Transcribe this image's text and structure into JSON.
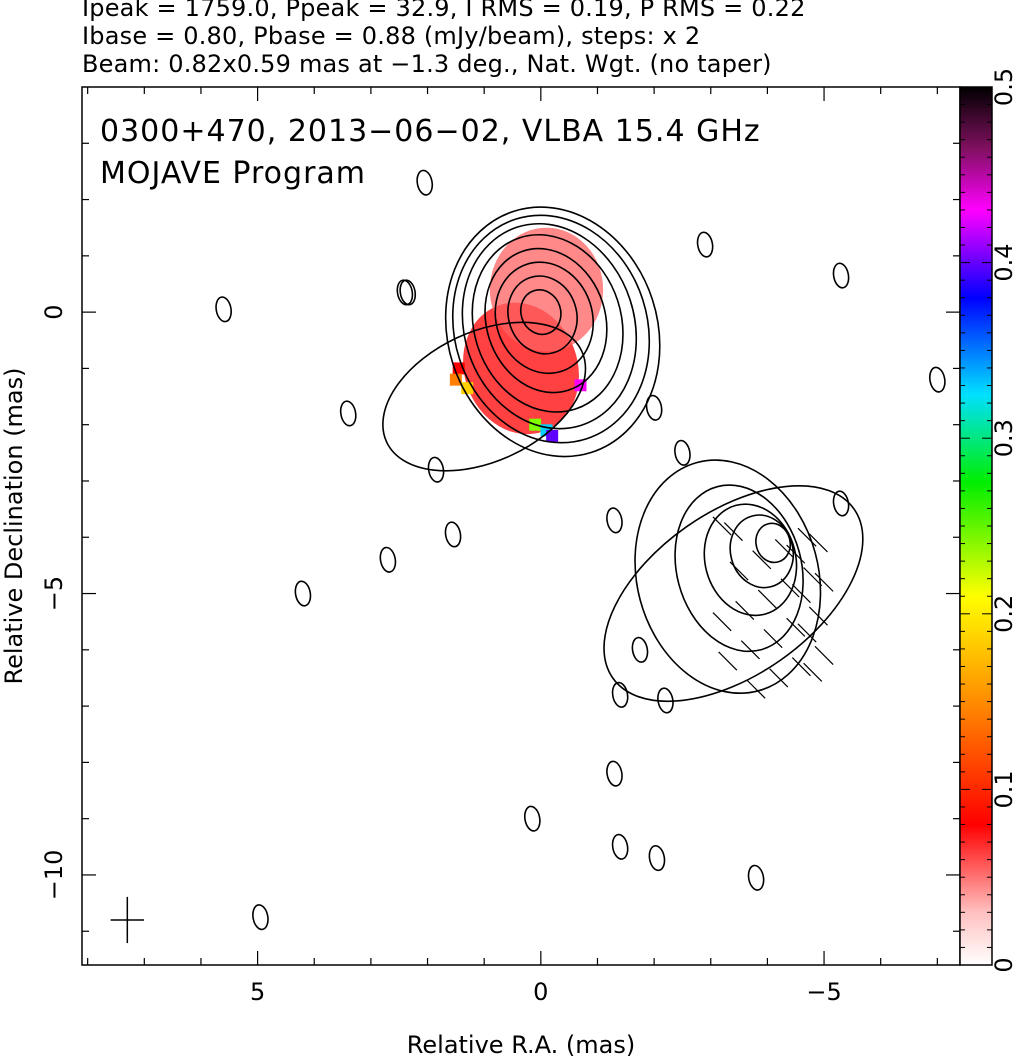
{
  "header": {
    "line1": "Ipeak = 1759.0, Ppeak = 32.9, I RMS = 0.19, P RMS = 0.22",
    "line2": "Ibase = 0.80, Pbase = 0.88 (mJy/beam), steps: x 2",
    "line3": "Beam: 0.82x0.59 mas at −1.3 deg., Nat. Wgt. (no taper)"
  },
  "chart_data": {
    "type": "heatmap",
    "title": "0300+470, 2013−06−02, VLBA 15.4 GHz",
    "subtitle": "MOJAVE Program",
    "xlabel": "Relative R.A. (mas)",
    "ylabel": "Relative Declination (mas)",
    "xlim": [
      8.1,
      -7.4
    ],
    "ylim": [
      -11.6,
      4.0
    ],
    "x_axis_reversed": true,
    "x_ticks": [
      5,
      0,
      -5
    ],
    "x_tick_labels": [
      "5",
      "0",
      "−5"
    ],
    "y_ticks": [
      0,
      -5,
      -10
    ],
    "y_tick_labels": [
      "0",
      "−5",
      "−10"
    ],
    "colorbar": {
      "range": [
        0,
        0.5
      ],
      "ticks": [
        0,
        0.1,
        0.2,
        0.3,
        0.4,
        0.5
      ],
      "tick_labels": [
        "0",
        "0.1",
        "0.2",
        "0.3",
        "0.4",
        "0.5"
      ],
      "colors": [
        "#ffffff",
        "#ff0000",
        "#ff8000",
        "#ffff00",
        "#00ff00",
        "#00ffff",
        "#0000ff",
        "#ff00ff",
        "#000000"
      ]
    },
    "core": {
      "center": [
        0,
        0
      ],
      "contour_radii": [
        [
          0.35,
          0.4
        ],
        [
          0.6,
          0.7
        ],
        [
          0.85,
          1.0
        ],
        [
          1.05,
          1.3
        ],
        [
          1.3,
          1.6
        ],
        [
          1.5,
          1.85
        ],
        [
          1.7,
          2.05
        ],
        [
          1.85,
          2.25
        ]
      ],
      "polarization_region": {
        "center": [
          0.35,
          -1.0
        ],
        "radii": [
          1.0,
          0.95
        ],
        "fractional_pol": 0.05
      }
    },
    "jet_component": {
      "center": [
        -4.1,
        -4.1
      ],
      "contour_radii": [
        [
          0.3,
          0.35
        ],
        [
          0.55,
          0.65
        ],
        [
          0.8,
          1.0
        ],
        [
          1.1,
          1.5
        ],
        [
          1.6,
          2.1
        ]
      ],
      "outer_extent": {
        "center": [
          -3.4,
          -5.0
        ],
        "radii": [
          2.6,
          1.45
        ]
      }
    },
    "noise_contours": [
      [
        5.6,
        0.05
      ],
      [
        4.2,
        -5.0
      ],
      [
        3.4,
        -1.8
      ],
      [
        2.7,
        -4.4
      ],
      [
        1.85,
        -2.8
      ],
      [
        1.55,
        -3.95
      ],
      [
        2.05,
        2.3
      ],
      [
        2.35,
        0.35
      ],
      [
        -2.0,
        -1.7
      ],
      [
        -2.2,
        -6.9
      ],
      [
        -1.75,
        -6.0
      ],
      [
        -2.5,
        -2.5
      ],
      [
        -1.3,
        -8.2
      ],
      [
        0.15,
        -9.0
      ],
      [
        -1.4,
        -9.5
      ],
      [
        -2.05,
        -9.7
      ],
      [
        -3.8,
        -10.05
      ],
      [
        -5.3,
        0.65
      ],
      [
        -7.0,
        -1.2
      ],
      [
        4.95,
        -10.75
      ],
      [
        -1.4,
        -6.8
      ],
      [
        -1.3,
        -3.7
      ],
      [
        -5.3,
        -3.4
      ],
      [
        -2.9,
        1.2
      ],
      [
        2.4,
        0.35
      ]
    ],
    "beam": {
      "major_mas": 0.82,
      "minor_mas": 0.59,
      "pa_deg": -1.3,
      "position": [
        7.3,
        -10.8
      ]
    },
    "colors": {
      "contour": "#000000",
      "frame": "#000000",
      "background": "#ffffff",
      "pol_base": "#ff2020"
    }
  }
}
